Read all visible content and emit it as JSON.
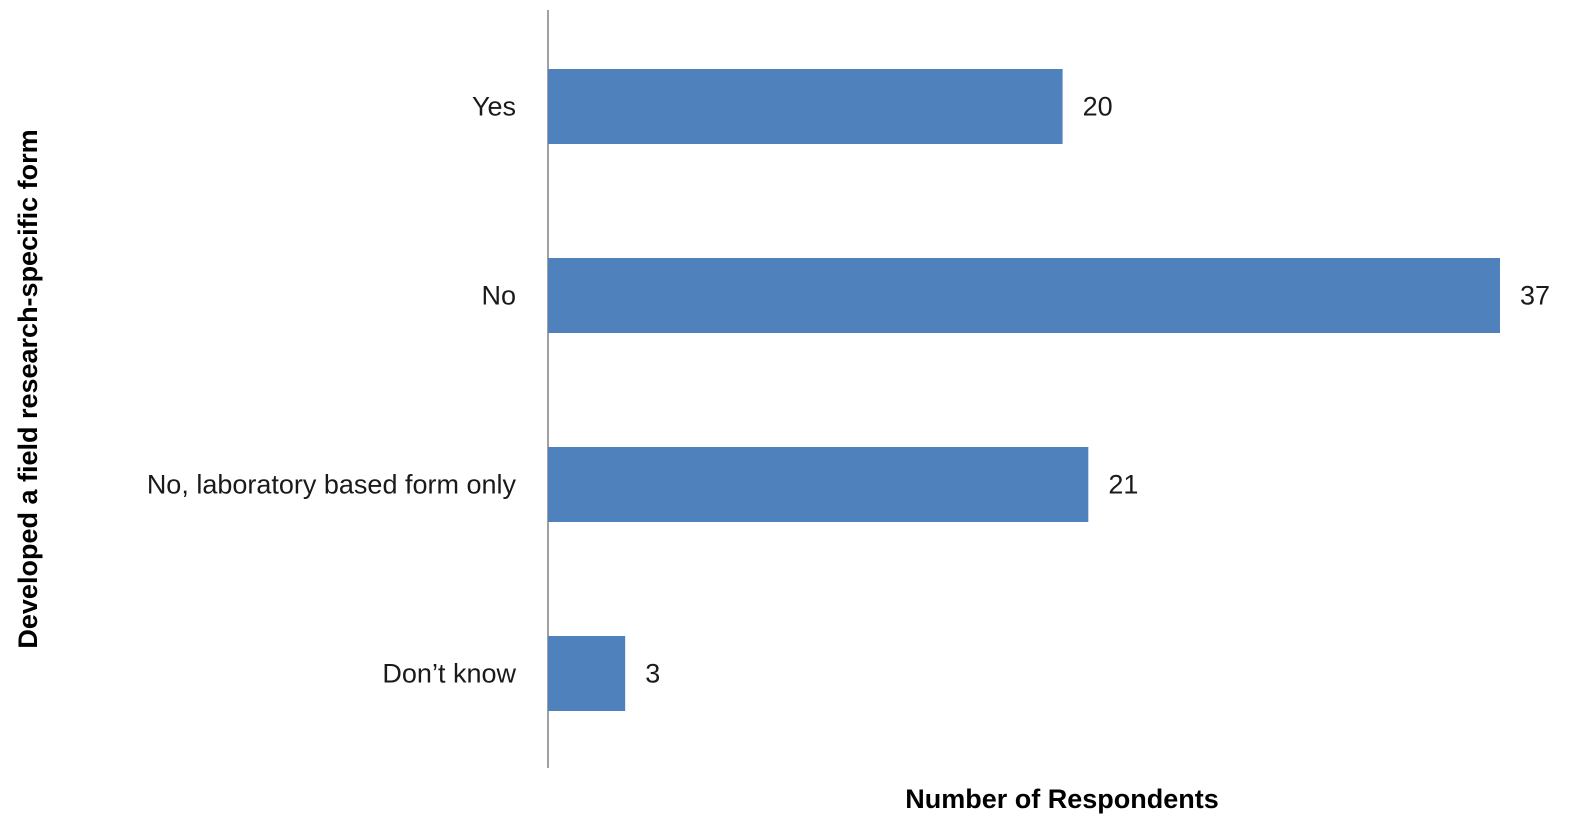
{
  "chart_data": {
    "type": "bar",
    "orientation": "horizontal",
    "categories": [
      "Yes",
      "No",
      "No,  laboratory based form only",
      "Don’t know"
    ],
    "values": [
      20,
      37,
      21,
      3
    ],
    "title": "",
    "xlabel": "Number of Respondents",
    "ylabel": "Developed a field research-specific form",
    "xlim": [
      0,
      37
    ],
    "grid": false,
    "legend": "none",
    "data_labels": true,
    "bar_color": "#4f81bd",
    "axis_color": "#808080"
  }
}
